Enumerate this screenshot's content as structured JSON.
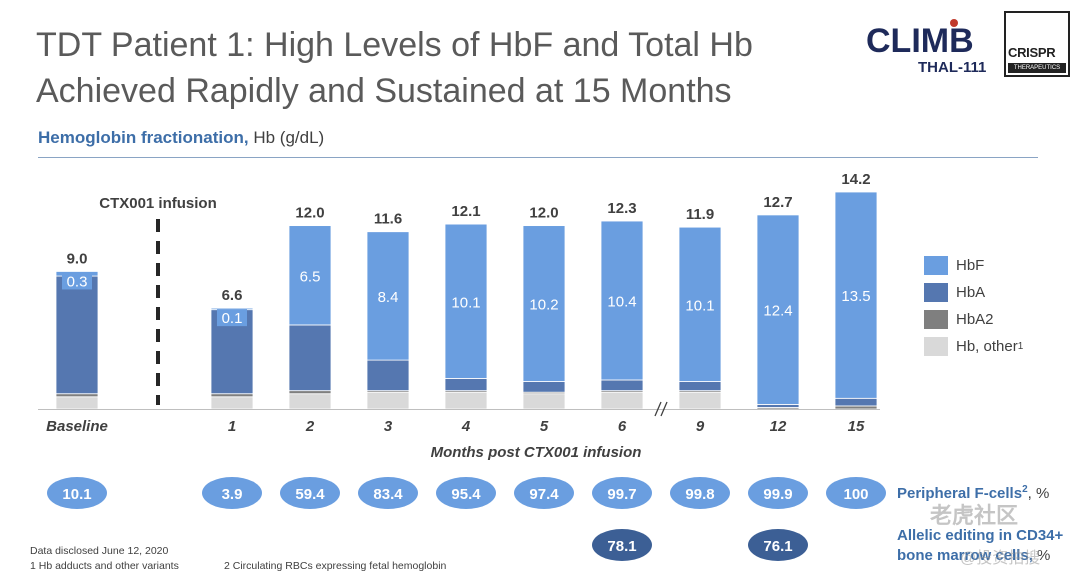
{
  "header": {
    "title_line1": "TDT Patient 1: High Levels of HbF and Total Hb",
    "title_line2": "Achieved Rapidly and Sustained at 15 Months",
    "subtitle_bold": "Hemoglobin fractionation,",
    "subtitle_normal": " Hb (g/dL)"
  },
  "logos": {
    "climb_text": "CLIMB",
    "climb_sub": "THAL-111",
    "crispr_text": "CRISPR",
    "crispr_sub": "THERAPEUTICS"
  },
  "colors": {
    "hbf": "#6a9ee0",
    "hba": "#5577b0",
    "hba2": "#7f7f7f",
    "other": "#d9d9d9",
    "oval_light": "#6a9ee0",
    "oval_dark": "#3c5f95",
    "label_blue": "#3d6ea8"
  },
  "chart_data": {
    "type": "bar",
    "stacked": true,
    "categories": [
      "Baseline",
      "1",
      "2",
      "3",
      "4",
      "5",
      "6",
      "9",
      "12",
      "15"
    ],
    "totals": [
      9.0,
      6.6,
      12.0,
      11.6,
      12.1,
      12.0,
      12.3,
      11.9,
      12.7,
      14.2
    ],
    "series": [
      {
        "name": "Hb, other",
        "values": [
          0.8,
          0.8,
          1.0,
          1.1,
          1.1,
          1.0,
          1.1,
          1.1,
          0.0,
          0.0
        ]
      },
      {
        "name": "HbA2",
        "values": [
          0.2,
          0.2,
          0.2,
          0.1,
          0.1,
          0.1,
          0.1,
          0.1,
          0.1,
          0.2
        ]
      },
      {
        "name": "HbA",
        "values": [
          7.7,
          5.5,
          4.3,
          2.0,
          0.8,
          0.7,
          0.7,
          0.6,
          0.2,
          0.5
        ]
      },
      {
        "name": "HbF",
        "values": [
          0.3,
          0.1,
          6.5,
          8.4,
          10.1,
          10.2,
          10.4,
          10.1,
          12.4,
          13.5
        ]
      }
    ],
    "hbf_labels": [
      "0.3",
      "0.1",
      "6.5",
      "8.4",
      "10.1",
      "10.2",
      "10.4",
      "10.1",
      "12.4",
      "13.5"
    ],
    "total_labels": [
      "9.0",
      "6.6",
      "12.0",
      "11.6",
      "12.1",
      "12.0",
      "12.3",
      "11.9",
      "12.7",
      "14.2"
    ],
    "xlabel": "Months post CTX001 infusion",
    "infusion_label": "CTX001 infusion",
    "ylim": [
      0,
      15
    ],
    "legend": [
      "HbF",
      "HbA",
      "HbA2",
      "Hb, other"
    ],
    "legend_superscript": "1",
    "legend_placement": "right",
    "axis_break_after": "6",
    "f_cells": {
      "label": "Peripheral F-cells",
      "superscript": "2",
      "unit": ", %",
      "values": [
        "10.1",
        "3.9",
        "59.4",
        "83.4",
        "95.4",
        "97.4",
        "99.7",
        "99.8",
        "99.9",
        "100"
      ]
    },
    "allelic_editing": {
      "label_line1": "Allelic editing in CD34+",
      "label_line2": "bone marrow cells,",
      "unit": " %",
      "values": [
        {
          "category": "6",
          "value": "78.1"
        },
        {
          "category": "12",
          "value": "76.1"
        }
      ]
    }
  },
  "footnotes": {
    "disclosed": "Data disclosed June 12, 2020",
    "note1": "1  Hb adducts and other variants",
    "note2": "2  Circulating RBCs expressing fetal hemoglobin"
  },
  "watermark": {
    "line1": "老虎社区",
    "line2": "@投资拍搜"
  }
}
